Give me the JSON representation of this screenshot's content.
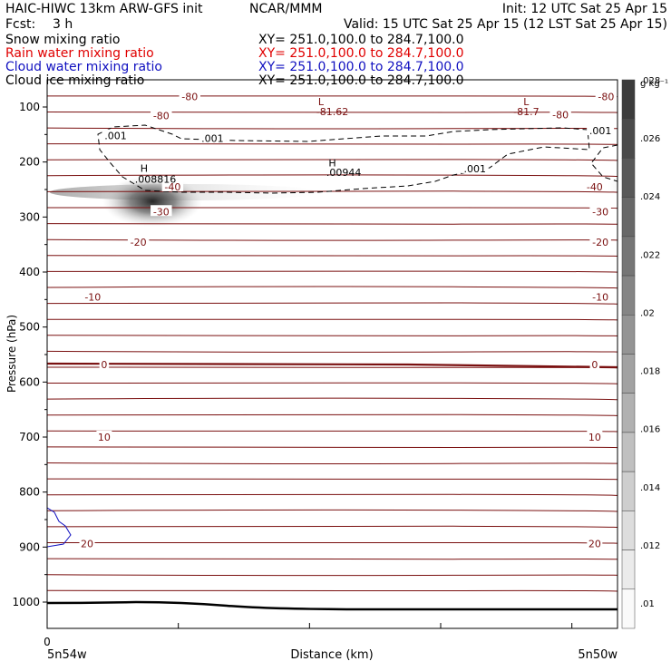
{
  "header": {
    "title_left": "HAIC-HIWC 13km ARW-GFS init",
    "title_center": "NCAR/MMM",
    "init": "Init: 12 UTC Sat 25 Apr 15",
    "fcst_label": "Fcst:",
    "fcst_value": "3 h",
    "valid": "Valid: 15 UTC Sat 25 Apr 15 (12 LST Sat 25 Apr 15)"
  },
  "fields": [
    {
      "name": "Snow mixing ratio",
      "xy": "XY= 251.0,100.0 to 284.7,100.0",
      "color": "#000000"
    },
    {
      "name": "Rain water mixing ratio",
      "xy": "XY= 251.0,100.0 to 284.7,100.0",
      "color": "#e00000"
    },
    {
      "name": "Cloud water mixing ratio",
      "xy": "XY= 251.0,100.0 to 284.7,100.0",
      "color": "#1010c0"
    },
    {
      "name": "Cloud ice mixing ratio",
      "xy": "XY= 251.0,100.0 to 284.7,100.0",
      "color": "#000000"
    }
  ],
  "chart_data": {
    "type": "contour",
    "xlabel": "Distance (km)",
    "ylabel": "Pressure (hPa)",
    "x_tick_labels": [
      "0"
    ],
    "x_end_labels": [
      "5n54w",
      "5n50w"
    ],
    "y_ticks": [
      100,
      200,
      300,
      400,
      500,
      600,
      700,
      800,
      900,
      1000
    ],
    "ylim": [
      1000,
      50
    ],
    "colorbar": {
      "unit": "g kg⁻¹",
      "ticks": [
        ".01",
        ".012",
        ".014",
        ".016",
        ".018",
        ".02",
        ".022",
        ".024",
        ".026",
        ".028"
      ],
      "levels": 14
    },
    "temperature_contours": {
      "color": "#7a1010",
      "labels": [
        {
          "text": "-80",
          "p": 81,
          "d": 0.25
        },
        {
          "text": "-80",
          "p": 116,
          "d": 0.2
        },
        {
          "text": "-80",
          "p": 81,
          "d": 0.98
        },
        {
          "text": "-80",
          "p": 114,
          "d": 0.9
        },
        {
          "text": "-40",
          "p": 245,
          "d": 0.22
        },
        {
          "text": "-40",
          "p": 245,
          "d": 0.96
        },
        {
          "text": "-30",
          "p": 290,
          "d": 0.2
        },
        {
          "text": "-30",
          "p": 290,
          "d": 0.97
        },
        {
          "text": "-20",
          "p": 346,
          "d": 0.16
        },
        {
          "text": "-20",
          "p": 346,
          "d": 0.97
        },
        {
          "text": "-10",
          "p": 445,
          "d": 0.08
        },
        {
          "text": "-10",
          "p": 445,
          "d": 0.97
        },
        {
          "text": "0",
          "p": 568,
          "d": 0.1
        },
        {
          "text": "0",
          "p": 568,
          "d": 0.96
        },
        {
          "text": "10",
          "p": 700,
          "d": 0.1
        },
        {
          "text": "10",
          "p": 700,
          "d": 0.96
        },
        {
          "text": "20",
          "p": 894,
          "d": 0.07
        },
        {
          "text": "20",
          "p": 894,
          "d": 0.96
        }
      ],
      "extrema": [
        {
          "text": "L",
          "p": 90,
          "d": 0.48
        },
        {
          "text": "-81.62",
          "p": 108,
          "d": 0.5
        },
        {
          "text": "L",
          "p": 90,
          "d": 0.84
        },
        {
          "text": "-81.7",
          "p": 108,
          "d": 0.84
        }
      ]
    },
    "cloud_ice_contour": {
      "level_label": ".001",
      "labels": [
        {
          "text": ".001",
          "p": 152,
          "d": 0.12
        },
        {
          "text": ".001",
          "p": 157,
          "d": 0.29
        },
        {
          "text": ".001",
          "p": 212,
          "d": 0.75
        },
        {
          "text": ".001",
          "p": 143,
          "d": 0.97
        }
      ],
      "maxima": [
        {
          "text": "H",
          "p": 211,
          "d": 0.17
        },
        {
          "text": ".008816",
          "p": 231,
          "d": 0.19
        },
        {
          "text": "H",
          "p": 201,
          "d": 0.5
        },
        {
          "text": ".00944",
          "p": 219,
          "d": 0.52
        }
      ]
    },
    "cloud_water_contour": {
      "color": "#1010c0"
    }
  }
}
